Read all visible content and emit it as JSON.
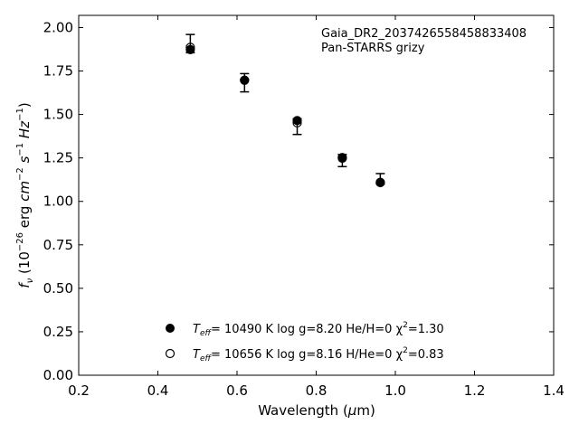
{
  "chart_data": {
    "type": "scatter",
    "xlabel": "Wavelength (μm)",
    "ylabel": "f_ν (10^-26 erg cm^-2 s^-1 Hz^-1)",
    "xlim": [
      0.2,
      1.4
    ],
    "ylim": [
      0.0,
      2.07
    ],
    "x_ticks": [
      "0.2",
      "0.4",
      "0.6",
      "0.8",
      "1.0",
      "1.2",
      "1.4"
    ],
    "y_ticks": [
      "0.00",
      "0.25",
      "0.50",
      "0.75",
      "1.00",
      "1.25",
      "1.50",
      "1.75",
      "2.00"
    ],
    "annotation": [
      "Gaia_DR2_2037426558458833408",
      "Pan-STARRS grizy"
    ],
    "observed": {
      "x": [
        0.482,
        0.619,
        0.752,
        0.866,
        0.962
      ],
      "y": [
        1.865,
        1.68,
        1.43,
        1.235,
        1.11
      ],
      "yerr_low": [
        0.01,
        0.05,
        0.045,
        0.035,
        0.01
      ],
      "yerr_high": [
        0.095,
        0.055,
        0.045,
        0.035,
        0.05
      ]
    },
    "series": [
      {
        "name": "T_eff= 10490 K  log g=8.20  He/H=0  χ²=1.30",
        "marker": "filled-circle",
        "x": [
          0.482,
          0.619,
          0.752,
          0.866,
          0.962
        ],
        "values": [
          1.873,
          1.697,
          1.465,
          1.248,
          1.108
        ]
      },
      {
        "name": "T_eff= 10656 K  log g=8.16  H/He=0  χ²=0.83",
        "marker": "open-circle",
        "x": [
          0.482,
          0.619,
          0.752,
          0.866,
          0.962
        ],
        "values": [
          1.886,
          1.697,
          1.452,
          1.252,
          1.11
        ]
      }
    ],
    "legend": [
      {
        "marker": "filled-circle",
        "teff_label": "T",
        "teff_sub": "eff",
        "text": "= 10490 K  log g=8.20  He/H=0  χ",
        "chi_sup": "2",
        "chi_val": "=1.30"
      },
      {
        "marker": "open-circle",
        "teff_label": "T",
        "teff_sub": "eff",
        "text": "= 10656 K  log g=8.16  H/He=0  χ",
        "chi_sup": "2",
        "chi_val": "=0.83"
      }
    ],
    "legend_position": "bottom-center",
    "grid": false,
    "colors": {
      "marker": "#000000",
      "axes": "#000000",
      "background": "#ffffff"
    }
  }
}
